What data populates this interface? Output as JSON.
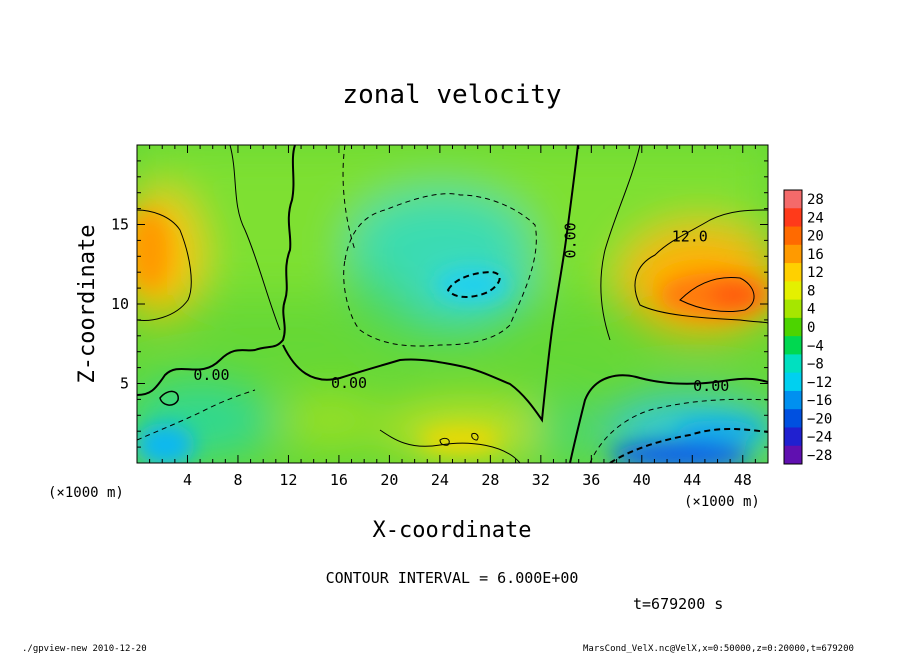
{
  "chart_data": {
    "type": "heatmap",
    "title": "zonal velocity",
    "xlabel": "X-coordinate",
    "ylabel": "Z-coordinate",
    "x_unit": "(×1000 m)",
    "y_unit": "(×1000 m)",
    "xlim": [
      0,
      50
    ],
    "ylim": [
      0,
      20
    ],
    "x_ticks": [
      "4",
      "8",
      "12",
      "16",
      "20",
      "24",
      "28",
      "32",
      "36",
      "40",
      "44",
      "48"
    ],
    "y_ticks": [
      "5",
      "10",
      "15"
    ],
    "colorbar_levels": [
      "28",
      "24",
      "20",
      "16",
      "12",
      "8",
      "4",
      "0",
      "−4",
      "−8",
      "−12",
      "−16",
      "−20",
      "−24",
      "−28"
    ],
    "colorbar_colors": [
      "#f46a6a",
      "#ff3a1a",
      "#ff6a00",
      "#ff9a00",
      "#ffd000",
      "#e4f000",
      "#a6e600",
      "#4cd400",
      "#00d850",
      "#00e0c0",
      "#00d0f0",
      "#0090f0",
      "#0050e0",
      "#2020d0",
      "#6010b0"
    ],
    "contour_labels": [
      {
        "text": "0.00",
        "x": 5.9,
        "z": 5.5
      },
      {
        "text": "0.00",
        "x": 16.8,
        "z": 5.0
      },
      {
        "text": "0.00",
        "x": 34.4,
        "z": 14.0
      },
      {
        "text": "0.00",
        "x": 45.5,
        "z": 4.8
      },
      {
        "text": "12.0",
        "x": 43.8,
        "z": 14.2
      }
    ],
    "contour_interval_label": "CONTOUR INTERVAL = 6.000E+00",
    "time_label": "t=679200 s"
  },
  "footer": {
    "left": "./gpview-new  2010-12-20",
    "right": "MarsCond_VelX.nc@VelX,x=0:50000,z=0:20000,t=679200"
  }
}
